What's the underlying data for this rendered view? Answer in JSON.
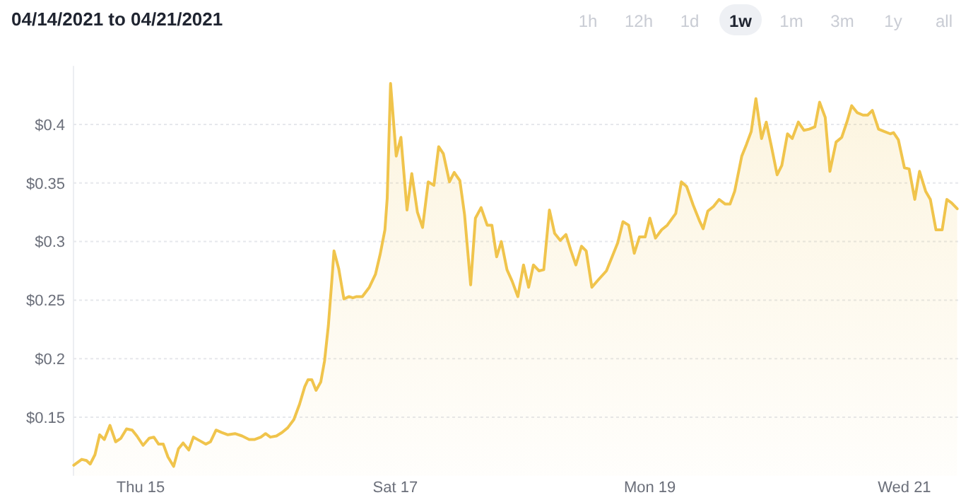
{
  "chart_data": {
    "type": "area",
    "title": "04/14/2021 to 04/21/2021",
    "annotations": [
      "1h",
      "12h",
      "1d",
      "1w",
      "1m",
      "3m",
      "1y",
      "all"
    ],
    "xlim": [
      "2021-04-14T11:20",
      "2021-04-21T10:40"
    ],
    "ylim": [
      0.1,
      0.45
    ],
    "xticks": [
      {
        "value": "2021-04-15",
        "label": "Thu 15"
      },
      {
        "value": "2021-04-17",
        "label": "Sat 17"
      },
      {
        "value": "2021-04-19",
        "label": "Mon 19"
      },
      {
        "value": "2021-04-21",
        "label": "Wed 21"
      }
    ],
    "yticks": [
      {
        "value": 0.15,
        "label": "$0.15"
      },
      {
        "value": 0.2,
        "label": "$0.2"
      },
      {
        "value": 0.25,
        "label": "$0.25"
      },
      {
        "value": 0.3,
        "label": "$0.3"
      },
      {
        "value": 0.35,
        "label": "$0.35"
      },
      {
        "value": 0.4,
        "label": "$0.4"
      }
    ],
    "grid": "y",
    "x": [
      "2021-04-14T11:23",
      "2021-04-14T12:53",
      "2021-04-14T13:47",
      "2021-04-14T14:29",
      "2021-04-14T15:23",
      "2021-04-14T16:16",
      "2021-04-14T17:09",
      "2021-04-14T18:13",
      "2021-04-14T19:17",
      "2021-04-14T20:16",
      "2021-04-14T21:20",
      "2021-04-14T22:24",
      "2021-04-14T23:17",
      "2021-04-15T00:27",
      "2021-04-15T01:36",
      "2021-04-15T02:29",
      "2021-04-15T03:23",
      "2021-04-15T04:16",
      "2021-04-15T05:09",
      "2021-04-15T06:13",
      "2021-04-15T07:07",
      "2021-04-15T08:00",
      "2021-04-15T09:04",
      "2021-04-15T09:57",
      "2021-04-15T11:07",
      "2021-04-15T12:16",
      "2021-04-15T13:09",
      "2021-04-15T14:13",
      "2021-04-15T15:17",
      "2021-04-15T16:27",
      "2021-04-15T17:47",
      "2021-04-15T19:07",
      "2021-04-15T20:27",
      "2021-04-15T21:31",
      "2021-04-15T22:40",
      "2021-04-15T23:33",
      "2021-04-16T00:27",
      "2021-04-16T01:36",
      "2021-04-16T02:40",
      "2021-04-16T03:44",
      "2021-04-16T04:53",
      "2021-04-16T05:57",
      "2021-04-16T06:56",
      "2021-04-16T07:33",
      "2021-04-16T08:16",
      "2021-04-16T09:04",
      "2021-04-16T09:57",
      "2021-04-16T10:40",
      "2021-04-16T11:23",
      "2021-04-16T12:05",
      "2021-04-16T12:27",
      "2021-04-16T13:20",
      "2021-04-16T14:19",
      "2021-04-16T15:17",
      "2021-04-16T16:00",
      "2021-04-16T16:43",
      "2021-04-16T17:47",
      "2021-04-16T19:07",
      "2021-04-16T20:16",
      "2021-04-16T21:09",
      "2021-04-16T22:03",
      "2021-04-16T22:29",
      "2021-04-16T23:07",
      "2021-04-17T00:11",
      "2021-04-17T01:04",
      "2021-04-17T02:13",
      "2021-04-17T03:07",
      "2021-04-17T04:11",
      "2021-04-17T05:09",
      "2021-04-17T06:13",
      "2021-04-17T07:17",
      "2021-04-17T08:11",
      "2021-04-17T09:04",
      "2021-04-17T10:13",
      "2021-04-17T11:07",
      "2021-04-17T12:11",
      "2021-04-17T13:04",
      "2021-04-17T14:13",
      "2021-04-17T15:07",
      "2021-04-17T16:11",
      "2021-04-17T17:20",
      "2021-04-17T18:13",
      "2021-04-17T19:07",
      "2021-04-17T20:00",
      "2021-04-17T21:04",
      "2021-04-17T22:03",
      "2021-04-17T23:07",
      "2021-04-18T00:11",
      "2021-04-18T01:09",
      "2021-04-18T02:03",
      "2021-04-18T03:07",
      "2021-04-18T04:00",
      "2021-04-18T05:04",
      "2021-04-18T06:03",
      "2021-04-18T07:07",
      "2021-04-18T08:11",
      "2021-04-18T09:04",
      "2021-04-18T10:03",
      "2021-04-18T11:07",
      "2021-04-18T12:00",
      "2021-04-18T13:04",
      "2021-04-18T14:13",
      "2021-04-18T15:49",
      "2021-04-18T16:53",
      "2021-04-18T17:57",
      "2021-04-18T18:56",
      "2021-04-18T20:00",
      "2021-04-18T21:04",
      "2021-04-18T22:03",
      "2021-04-18T23:07",
      "2021-04-19T00:00",
      "2021-04-19T01:04",
      "2021-04-19T02:13",
      "2021-04-19T03:17",
      "2021-04-19T04:53",
      "2021-04-19T05:57",
      "2021-04-19T06:56",
      "2021-04-19T08:11",
      "2021-04-19T09:20",
      "2021-04-19T10:03",
      "2021-04-19T10:56",
      "2021-04-19T12:00",
      "2021-04-19T13:04",
      "2021-04-19T14:13",
      "2021-04-19T15:07",
      "2021-04-19T16:00",
      "2021-04-19T17:20",
      "2021-04-19T18:13",
      "2021-04-19T19:07",
      "2021-04-19T20:00",
      "2021-04-19T21:04",
      "2021-04-19T21:57",
      "2021-04-19T22:56",
      "2021-04-20T00:00",
      "2021-04-20T00:53",
      "2021-04-20T01:57",
      "2021-04-20T02:51",
      "2021-04-20T04:00",
      "2021-04-20T05:04",
      "2021-04-20T06:03",
      "2021-04-20T07:07",
      "2021-04-20T08:00",
      "2021-04-20T09:04",
      "2021-04-20T09:57",
      "2021-04-20T11:07",
      "2021-04-20T12:11",
      "2021-04-20T13:09",
      "2021-04-20T14:03",
      "2021-04-20T15:07",
      "2021-04-20T16:11",
      "2021-04-20T17:04",
      "2021-04-20T17:57",
      "2021-04-20T19:07",
      "2021-04-20T20:11",
      "2021-04-20T21:20",
      "2021-04-20T21:57",
      "2021-04-20T22:51",
      "2021-04-21T00:00",
      "2021-04-21T00:53",
      "2021-04-21T01:57",
      "2021-04-21T02:51",
      "2021-04-21T04:00",
      "2021-04-21T04:53",
      "2021-04-21T05:57",
      "2021-04-21T07:07",
      "2021-04-21T08:00",
      "2021-04-21T08:53",
      "2021-04-21T09:57"
    ],
    "series": [
      {
        "color": "#f0c44c",
        "values": [
          0.109,
          0.114,
          0.113,
          0.11,
          0.118,
          0.135,
          0.131,
          0.143,
          0.129,
          0.132,
          0.14,
          0.139,
          0.134,
          0.126,
          0.132,
          0.133,
          0.127,
          0.127,
          0.116,
          0.108,
          0.123,
          0.128,
          0.122,
          0.133,
          0.13,
          0.127,
          0.129,
          0.139,
          0.137,
          0.135,
          0.136,
          0.134,
          0.131,
          0.131,
          0.133,
          0.136,
          0.133,
          0.134,
          0.137,
          0.141,
          0.148,
          0.161,
          0.176,
          0.182,
          0.182,
          0.173,
          0.18,
          0.198,
          0.228,
          0.269,
          0.292,
          0.277,
          0.251,
          0.253,
          0.252,
          0.253,
          0.253,
          0.261,
          0.272,
          0.289,
          0.31,
          0.337,
          0.435,
          0.373,
          0.389,
          0.327,
          0.358,
          0.325,
          0.312,
          0.351,
          0.348,
          0.381,
          0.375,
          0.351,
          0.359,
          0.352,
          0.323,
          0.263,
          0.32,
          0.329,
          0.314,
          0.314,
          0.287,
          0.3,
          0.276,
          0.266,
          0.253,
          0.28,
          0.261,
          0.28,
          0.275,
          0.276,
          0.327,
          0.307,
          0.301,
          0.306,
          0.293,
          0.28,
          0.296,
          0.292,
          0.261,
          0.267,
          0.275,
          0.287,
          0.299,
          0.317,
          0.314,
          0.29,
          0.304,
          0.304,
          0.32,
          0.303,
          0.31,
          0.314,
          0.324,
          0.351,
          0.347,
          0.331,
          0.318,
          0.311,
          0.326,
          0.33,
          0.336,
          0.332,
          0.332,
          0.343,
          0.373,
          0.383,
          0.394,
          0.422,
          0.388,
          0.402,
          0.381,
          0.357,
          0.365,
          0.392,
          0.388,
          0.402,
          0.395,
          0.396,
          0.398,
          0.419,
          0.406,
          0.36,
          0.385,
          0.389,
          0.402,
          0.416,
          0.41,
          0.408,
          0.408,
          0.412,
          0.396,
          0.394,
          0.392,
          0.393,
          0.387,
          0.363,
          0.362,
          0.336,
          0.36,
          0.343,
          0.336,
          0.31,
          0.31,
          0.336,
          0.333,
          0.328
        ]
      }
    ]
  }
}
